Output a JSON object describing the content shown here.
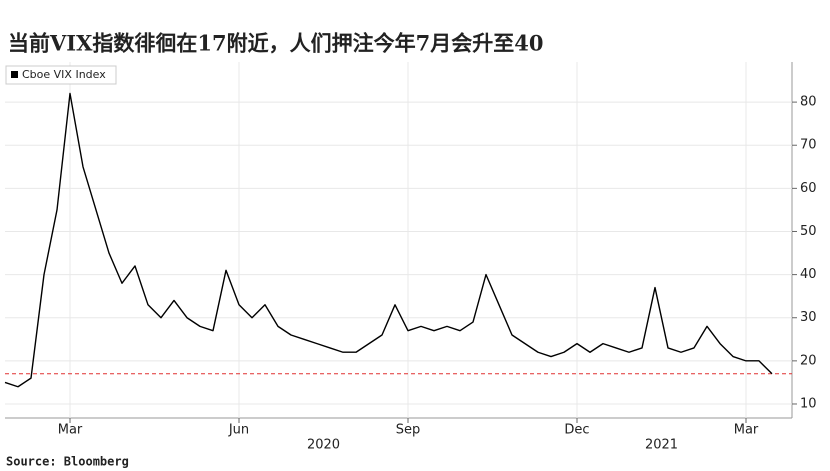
{
  "chart_data": {
    "type": "line",
    "title": "当前VIX指数徘徊在17附近，人们押注今年7月会升至40",
    "source": "Source: Bloomberg",
    "categories": [
      null,
      null,
      null,
      null,
      null,
      "Mar",
      null,
      null,
      null,
      null,
      null,
      null,
      null,
      null,
      null,
      null,
      null,
      null,
      "Jun",
      null,
      null,
      null,
      null,
      null,
      null,
      null,
      null,
      null,
      null,
      null,
      null,
      "Sep",
      null,
      null,
      null,
      null,
      null,
      null,
      null,
      null,
      null,
      null,
      null,
      null,
      "Dec",
      null,
      null,
      null,
      null,
      null,
      null,
      null,
      null,
      null,
      null,
      null,
      null,
      "Mar",
      null,
      null
    ],
    "years": [
      "2020",
      "2021"
    ],
    "series": [
      {
        "name": "Cboe VIX Index",
        "color": "#000000",
        "values": [
          15,
          14,
          16,
          40,
          55,
          82,
          65,
          55,
          45,
          38,
          42,
          33,
          30,
          34,
          30,
          28,
          27,
          41,
          33,
          30,
          33,
          28,
          26,
          25,
          24,
          23,
          22,
          22,
          24,
          26,
          33,
          27,
          28,
          27,
          28,
          27,
          29,
          40,
          33,
          26,
          24,
          22,
          21,
          22,
          24,
          22,
          24,
          23,
          22,
          23,
          37,
          23,
          22,
          23,
          28,
          24,
          21,
          20,
          20,
          17
        ]
      }
    ],
    "reference_line": 17,
    "reference_color": "#e03030",
    "ylim": [
      6.75,
      89.3
    ],
    "yticks": [
      10,
      20,
      30,
      40,
      50,
      60,
      70,
      80
    ],
    "grid": true
  }
}
